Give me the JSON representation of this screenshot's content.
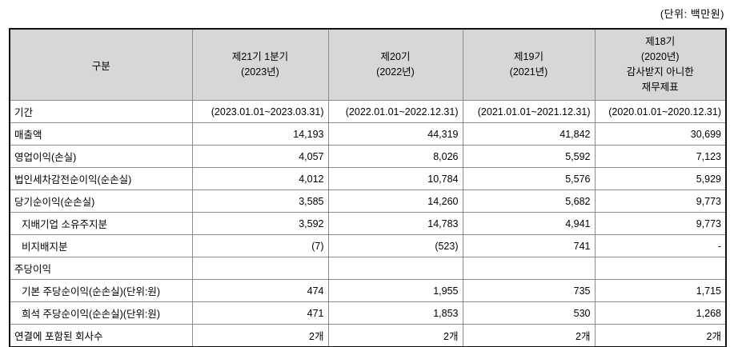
{
  "unit_label": "(단위: 백만원)",
  "table": {
    "header": {
      "col0": "구분",
      "columns": [
        {
          "lines": [
            "제21기 1분기",
            "(2023년)"
          ]
        },
        {
          "lines": [
            "제20기",
            "(2022년)"
          ]
        },
        {
          "lines": [
            "제19기",
            "(2021년)"
          ]
        },
        {
          "lines": [
            "제18기",
            "(2020년)",
            "감사받지 아니한",
            "재무제표"
          ]
        }
      ]
    },
    "rows": [
      {
        "label": "기간",
        "values": [
          "(2023.01.01~2023.03.31)",
          "(2022.01.01~2022.12.31)",
          "(2021.01.01~2021.12.31)",
          "(2020.01.01~2020.12.31)"
        ]
      },
      {
        "label": "매출액",
        "values": [
          "14,193",
          "44,319",
          "41,842",
          "30,699"
        ]
      },
      {
        "label": "영업이익(손실)",
        "values": [
          "4,057",
          "8,026",
          "5,592",
          "7,123"
        ]
      },
      {
        "label": "법인세차감전순이익(순손실)",
        "values": [
          "4,012",
          "10,784",
          "5,576",
          "5,929"
        ]
      },
      {
        "label": "당기순이익(순손실)",
        "values": [
          "3,585",
          "14,260",
          "5,682",
          "9,773"
        ]
      },
      {
        "label": "지배기업 소유주지분",
        "values": [
          "3,592",
          "14,783",
          "4,941",
          "9,773"
        ]
      },
      {
        "label": "비지배지분",
        "values": [
          "(7)",
          "(523)",
          "741",
          "-"
        ]
      },
      {
        "label": "주당이익",
        "values": [
          "",
          "",
          "",
          ""
        ]
      },
      {
        "label": "기본 주당순이익(순손실)(단위:원)",
        "values": [
          "474",
          "1,955",
          "735",
          "1,715"
        ]
      },
      {
        "label": "희석 주당순이익(순손실)(단위:원)",
        "values": [
          "471",
          "1,853",
          "530",
          "1,268"
        ]
      },
      {
        "label": "연결에 포함된 회사수",
        "values": [
          "2개",
          "2개",
          "2개",
          "2개"
        ]
      }
    ]
  },
  "colors": {
    "header_bg": "#d7d7d7",
    "border_outer": "#111111",
    "border_inner": "#8c8c8c",
    "text": "#000000",
    "background": "#ffffff"
  }
}
